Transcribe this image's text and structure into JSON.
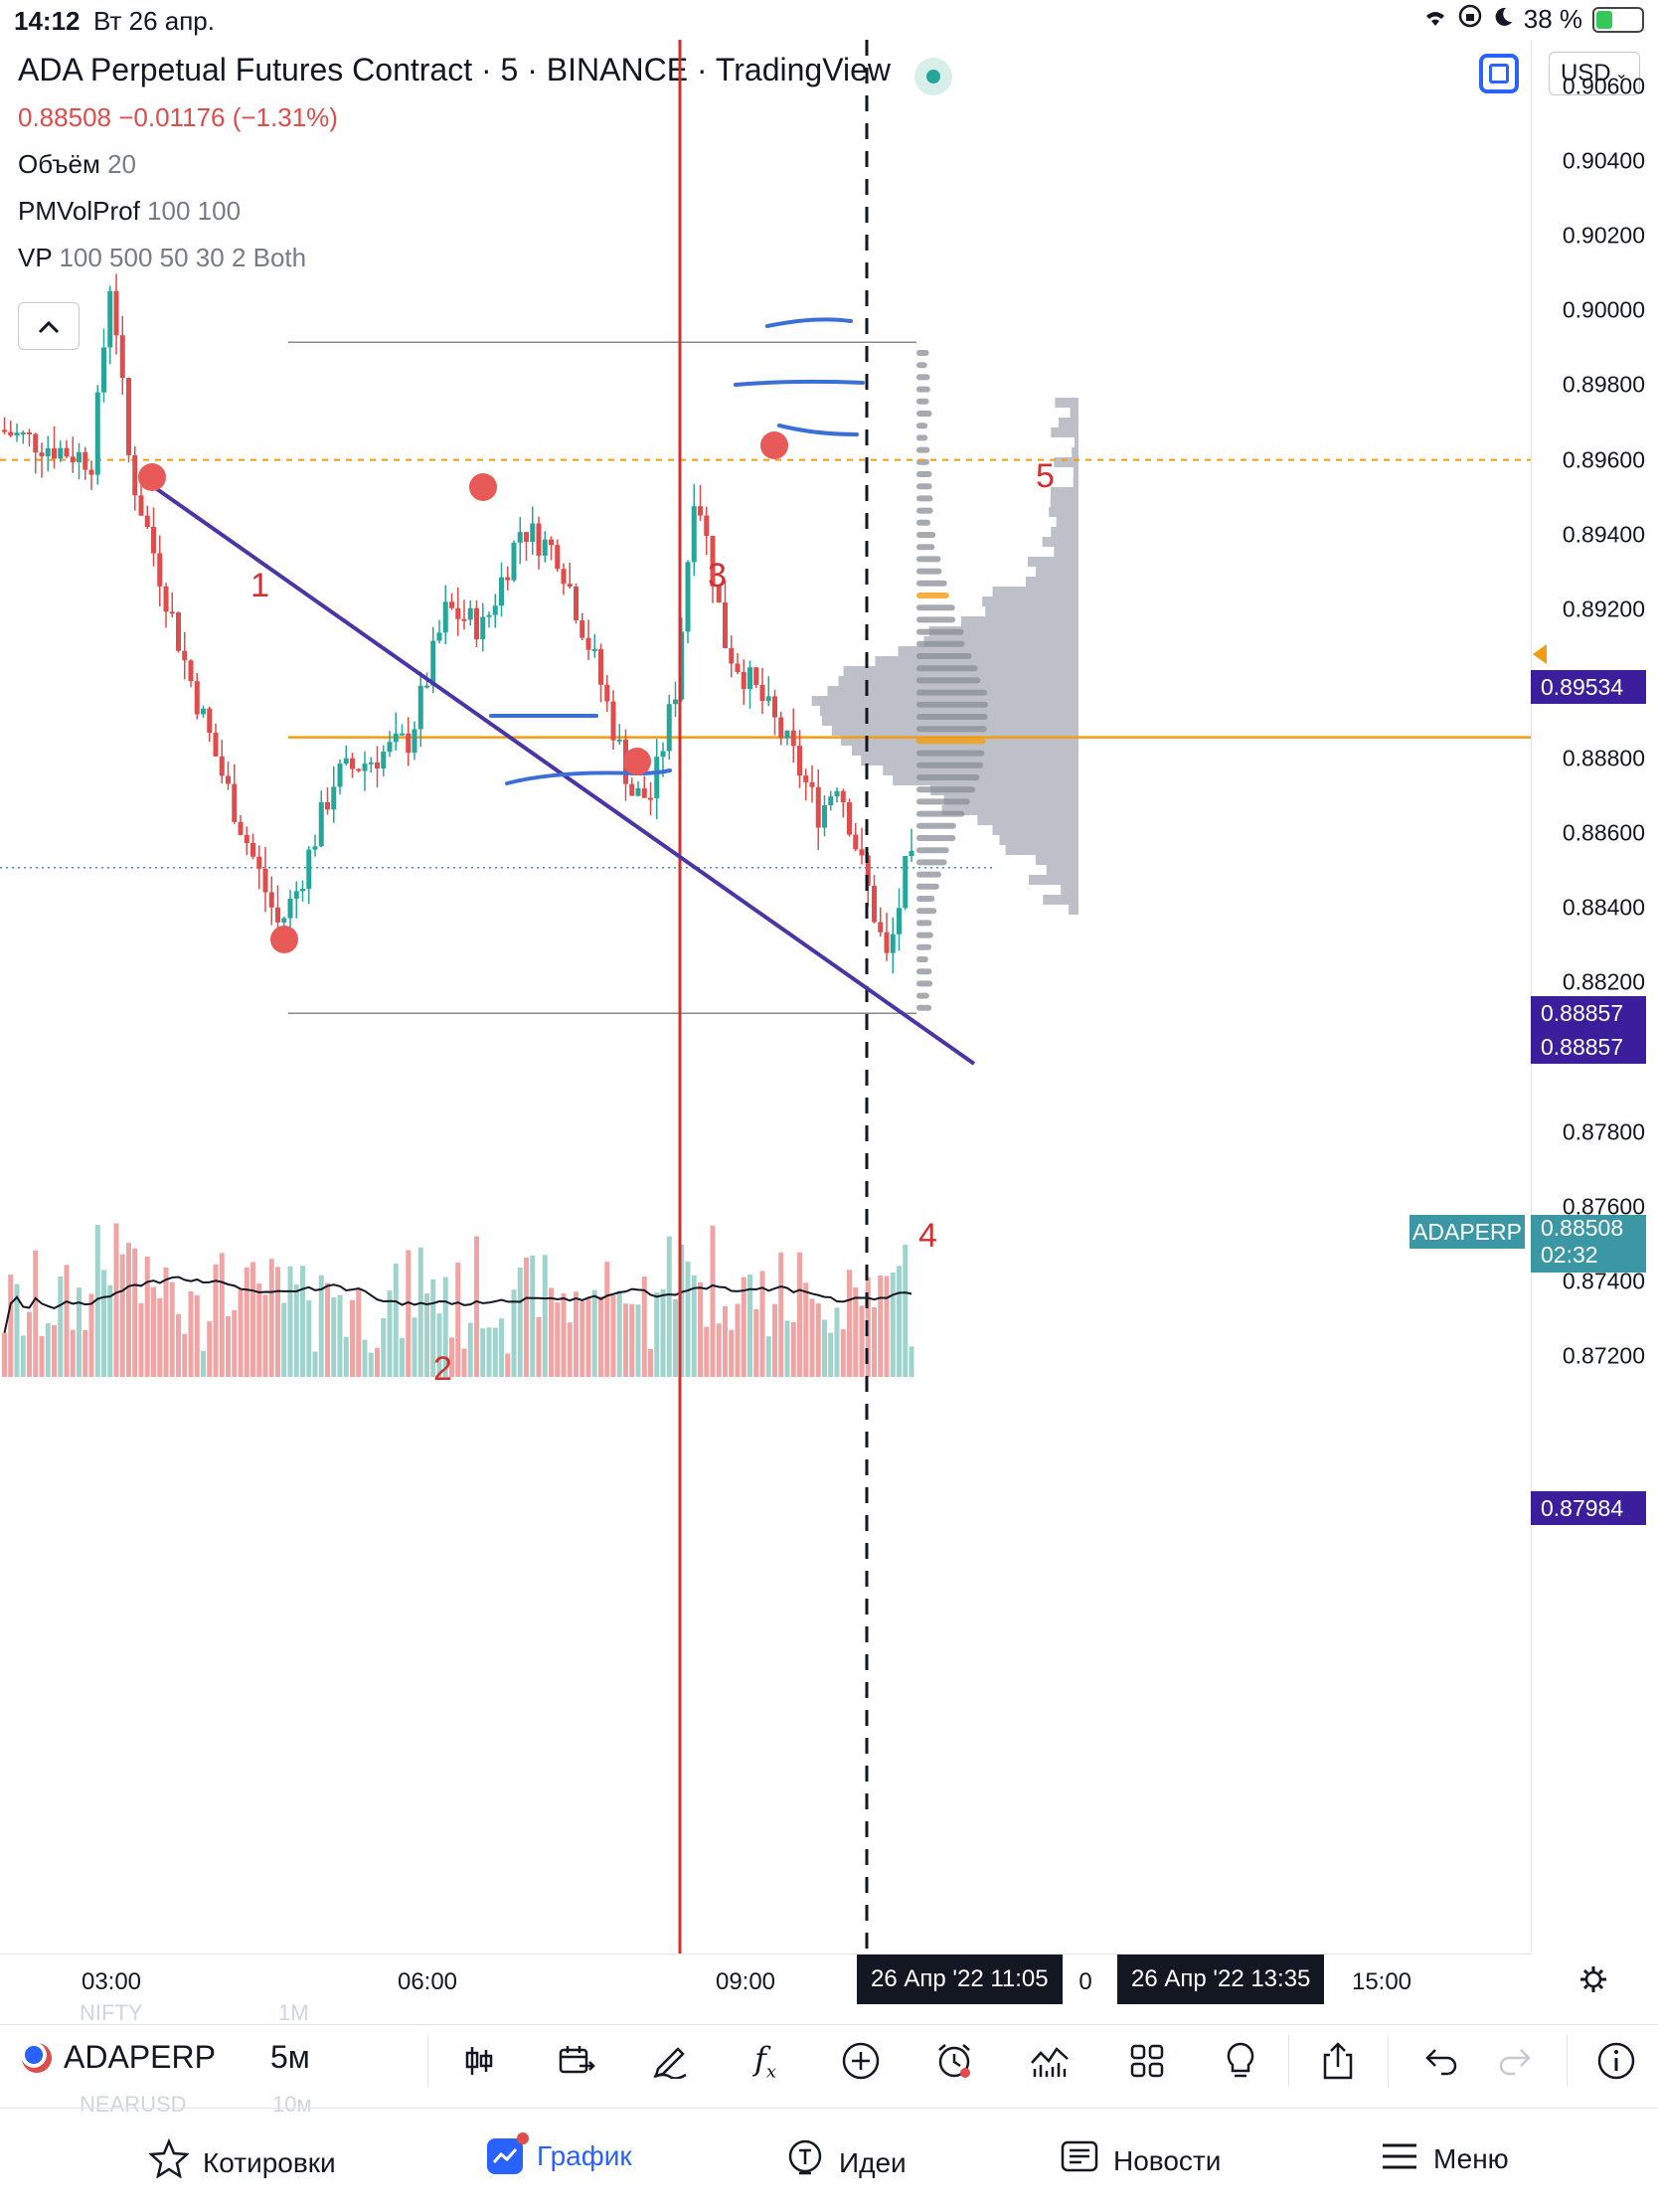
{
  "status_bar": {
    "time": "14:12",
    "date": "Вт 26 апр.",
    "battery": "38 %"
  },
  "header": {
    "title": "ADA Perpetual Futures Contract · 5 · BINANCE · TradingView",
    "last_price": "0.88508",
    "change": "−0.01176",
    "change_pct": "(−1.31%)",
    "indicators": [
      {
        "name": "Объём",
        "params": "20"
      },
      {
        "name": "PMVolProf",
        "params": "100 100"
      },
      {
        "name": "VP",
        "params": "100 500 50 30 2 Both"
      }
    ],
    "currency": "USD",
    "collapse_icon": "chevron-up-icon",
    "fullscreen_icon": "fullscreen-icon"
  },
  "price_axis": {
    "ticks": [
      "0.90600",
      "0.90400",
      "0.90200",
      "0.90000",
      "0.89800",
      "0.89600",
      "0.89400",
      "0.89200",
      "0.89000",
      "0.88800",
      "0.88600",
      "0.88400",
      "0.88200",
      "0.87800",
      "0.87600",
      "0.87400",
      "0.87200"
    ],
    "labels": {
      "hi_label": "0.89534",
      "poc_1": "0.88857",
      "poc_2": "0.88857",
      "current": "0.88508",
      "countdown": "02:32",
      "low_label": "0.87984"
    },
    "symbol_tag": "ADAPERP"
  },
  "time_axis": {
    "ticks": [
      "03:00",
      "06:00",
      "09:00",
      "15:00"
    ],
    "crosshair_1": "26 Апр '22   11:05",
    "crosshair_2": "26 Апр '22   13:35",
    "partial": "0"
  },
  "annotations": [
    "1",
    "2",
    "3",
    "4",
    "5"
  ],
  "toolbar": {
    "symbol": "ADAPERP",
    "interval": "5м",
    "ghost_top": [
      "NIFTY",
      "1M"
    ],
    "ghost_bottom": [
      "NEARUSD",
      "10м"
    ],
    "icons": [
      "candles-icon",
      "compare-icon",
      "drawing-pen-icon",
      "indicators-fx-icon",
      "add-icon",
      "alert-clock-icon",
      "strategy-chart-icon",
      "layout-grid-icon",
      "ideas-bulb-icon",
      "share-icon",
      "undo-icon",
      "redo-icon",
      "info-icon"
    ]
  },
  "bottom_nav": [
    {
      "label": "Котировки",
      "icon": "star-icon"
    },
    {
      "label": "График",
      "icon": "chart-icon",
      "active": true
    },
    {
      "label": "Идеи",
      "icon": "bulb-icon"
    },
    {
      "label": "Новости",
      "icon": "news-icon"
    },
    {
      "label": "Меню",
      "icon": "menu-icon"
    }
  ],
  "colors": {
    "up": "#26a69a",
    "down": "#e04b4b",
    "up_vol": "#9fd3cc",
    "down_vol": "#f1a4a4",
    "trendline": "#4a35a6",
    "accent": "#2962ff",
    "poc": "#f39c12"
  },
  "chart_data": {
    "type": "candlestick",
    "symbol": "ADAPERP",
    "interval": "5",
    "y_range": [
      0.8714,
      0.9073
    ],
    "price_points": [
      {
        "t": "01:00",
        "p": 0.8972
      },
      {
        "t": "02:00",
        "p": 0.8968
      },
      {
        "t": "03:15",
        "p": 0.896
      },
      {
        "t": "03:30",
        "p": 0.901
      },
      {
        "t": "03:45",
        "p": 0.8958
      },
      {
        "t": "04:30",
        "p": 0.8905
      },
      {
        "t": "05:00",
        "p": 0.8875
      },
      {
        "t": "05:45",
        "p": 0.8835
      },
      {
        "t": "06:00",
        "p": 0.8845
      },
      {
        "t": "06:30",
        "p": 0.8875
      },
      {
        "t": "07:30",
        "p": 0.8885
      },
      {
        "t": "08:00",
        "p": 0.892
      },
      {
        "t": "08:30",
        "p": 0.8915
      },
      {
        "t": "09:00",
        "p": 0.8942
      },
      {
        "t": "09:30",
        "p": 0.8935
      },
      {
        "t": "10:00",
        "p": 0.8905
      },
      {
        "t": "10:30",
        "p": 0.887
      },
      {
        "t": "10:45",
        "p": 0.887
      },
      {
        "t": "11:05",
        "p": 0.89
      },
      {
        "t": "11:20",
        "p": 0.8955
      },
      {
        "t": "11:45",
        "p": 0.891
      },
      {
        "t": "12:15",
        "p": 0.8895
      },
      {
        "t": "12:40",
        "p": 0.888
      },
      {
        "t": "13:00",
        "p": 0.8865
      },
      {
        "t": "13:15",
        "p": 0.8875
      },
      {
        "t": "13:35",
        "p": 0.885
      },
      {
        "t": "13:55",
        "p": 0.8825
      },
      {
        "t": "14:10",
        "p": 0.8851
      }
    ],
    "horizontal_levels": [
      0.896,
      0.88857,
      0.89915,
      0.88118
    ],
    "volume_ma": true
  }
}
